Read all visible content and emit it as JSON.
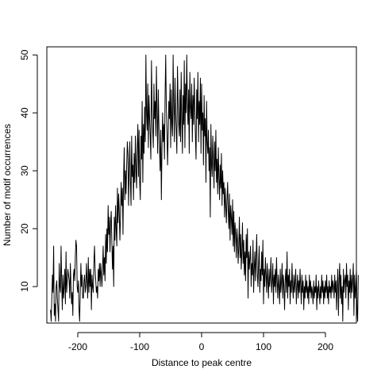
{
  "chart_data": {
    "type": "line",
    "title": "",
    "xlabel": "Distance to peak centre",
    "ylabel": "Number of motif occurrences",
    "xlim": [
      -250,
      250
    ],
    "ylim": [
      3.7,
      51.4
    ],
    "xticks": [
      -200,
      -100,
      0,
      100,
      200
    ],
    "xtick_labels": [
      "-200",
      "-100",
      "0",
      "100",
      "200"
    ],
    "yticks": [
      10,
      20,
      30,
      40,
      50
    ],
    "ytick_labels": [
      "10",
      "20",
      "30",
      "40",
      "50"
    ],
    "grid": false,
    "box": true,
    "series": [
      {
        "color": "#000000",
        "x_start": -244,
        "x_step": 1,
        "values": [
          6,
          4,
          8,
          12,
          9,
          17,
          5,
          7,
          4,
          10,
          11,
          8,
          6,
          4,
          14,
          10,
          9,
          17,
          11,
          6,
          12,
          8,
          10,
          13,
          7,
          16,
          9,
          11,
          13,
          12,
          11,
          8,
          14,
          10,
          7,
          9,
          5,
          12,
          13,
          11,
          15,
          18,
          17,
          10,
          9,
          11,
          6,
          4,
          9,
          14,
          10,
          12,
          8,
          8,
          11,
          12,
          9,
          10,
          14,
          11,
          8,
          15,
          9,
          13,
          10,
          13,
          6,
          12,
          10,
          9,
          14,
          17,
          13,
          11,
          9,
          10,
          8,
          13,
          11,
          14,
          10,
          14,
          12,
          10,
          13,
          17,
          12,
          15,
          11,
          19,
          14,
          20,
          16,
          24,
          19,
          22,
          16,
          21,
          23,
          18,
          13,
          17,
          10,
          22,
          18,
          24,
          20,
          17,
          27,
          21,
          26,
          23,
          18,
          22,
          28,
          24,
          27,
          19,
          29,
          34,
          25,
          30,
          26,
          31,
          35,
          33,
          24,
          30,
          35,
          28,
          24,
          36,
          29,
          31,
          25,
          33,
          28,
          36,
          30,
          27,
          34,
          38,
          29,
          37,
          28,
          25,
          36,
          32,
          42,
          28,
          38,
          33,
          41,
          35,
          50,
          40,
          37,
          45,
          34,
          43,
          39,
          36,
          32,
          49,
          41,
          37,
          34,
          45,
          39,
          42,
          36,
          48,
          40,
          33,
          44,
          38,
          34,
          30,
          37,
          25,
          34,
          40,
          35,
          38,
          32,
          43,
          50,
          41,
          37,
          31,
          36,
          42,
          39,
          45,
          34,
          44,
          38,
          36,
          50,
          41,
          35,
          46,
          40,
          37,
          33,
          48,
          42,
          38,
          36,
          44,
          35,
          47,
          39,
          33,
          43,
          38,
          49,
          34,
          45,
          40,
          50,
          42,
          38,
          44,
          33,
          47,
          41,
          39,
          45,
          35,
          43,
          38,
          46,
          41,
          36,
          32,
          44,
          39,
          47,
          35,
          42,
          38,
          46,
          33,
          45,
          37,
          40,
          31,
          43,
          36,
          39,
          28,
          42,
          35,
          33,
          37,
          30,
          34,
          22,
          38,
          31,
          29,
          36,
          32,
          27,
          35,
          30,
          37,
          28,
          32,
          26,
          34,
          29,
          25,
          31,
          27,
          33,
          24,
          30,
          26,
          28,
          22,
          27,
          24,
          21,
          25,
          28,
          23,
          20,
          26,
          18,
          24,
          22,
          19,
          25,
          17,
          23,
          16,
          21,
          19,
          15,
          20,
          18,
          14,
          17,
          22,
          15,
          19,
          13,
          16,
          21,
          14,
          18,
          12,
          16,
          11,
          19,
          15,
          20,
          8,
          16,
          13,
          15,
          17,
          10,
          14,
          12,
          18,
          9,
          13,
          16,
          11,
          15,
          19,
          12,
          10,
          14,
          17,
          9,
          13,
          11,
          16,
          12,
          18,
          7,
          13,
          10,
          15,
          12,
          9,
          14,
          11,
          8,
          13,
          10,
          12,
          15,
          9,
          11,
          14,
          7,
          12,
          10,
          13,
          9,
          15,
          11,
          8,
          12,
          10,
          7,
          13,
          9,
          11,
          14,
          8,
          12,
          10,
          6,
          11,
          13,
          9,
          16,
          8,
          12,
          10,
          13,
          7,
          11,
          9,
          14,
          10,
          8,
          12,
          9,
          11,
          13,
          7,
          10,
          12,
          8,
          11,
          9,
          13,
          10,
          7,
          12,
          9,
          11,
          6,
          10,
          8,
          12,
          9,
          11,
          8,
          10,
          7,
          12,
          9,
          11,
          8,
          10,
          9,
          7,
          11,
          8,
          10,
          9,
          12,
          6,
          10,
          8,
          11,
          9,
          7,
          10,
          8,
          12,
          9,
          11,
          7,
          10,
          8,
          11,
          9,
          12,
          8,
          10,
          7,
          11,
          9,
          10,
          8,
          12,
          9,
          11,
          10,
          8,
          12,
          9,
          11,
          6,
          10,
          13,
          5,
          11,
          14,
          8,
          12,
          7,
          10,
          4,
          13,
          9,
          11,
          12,
          8,
          14,
          10,
          12,
          6,
          11,
          9,
          13,
          8,
          12,
          9,
          11,
          14,
          5,
          12,
          8,
          10,
          13,
          6,
          4,
          12
        ]
      }
    ]
  }
}
